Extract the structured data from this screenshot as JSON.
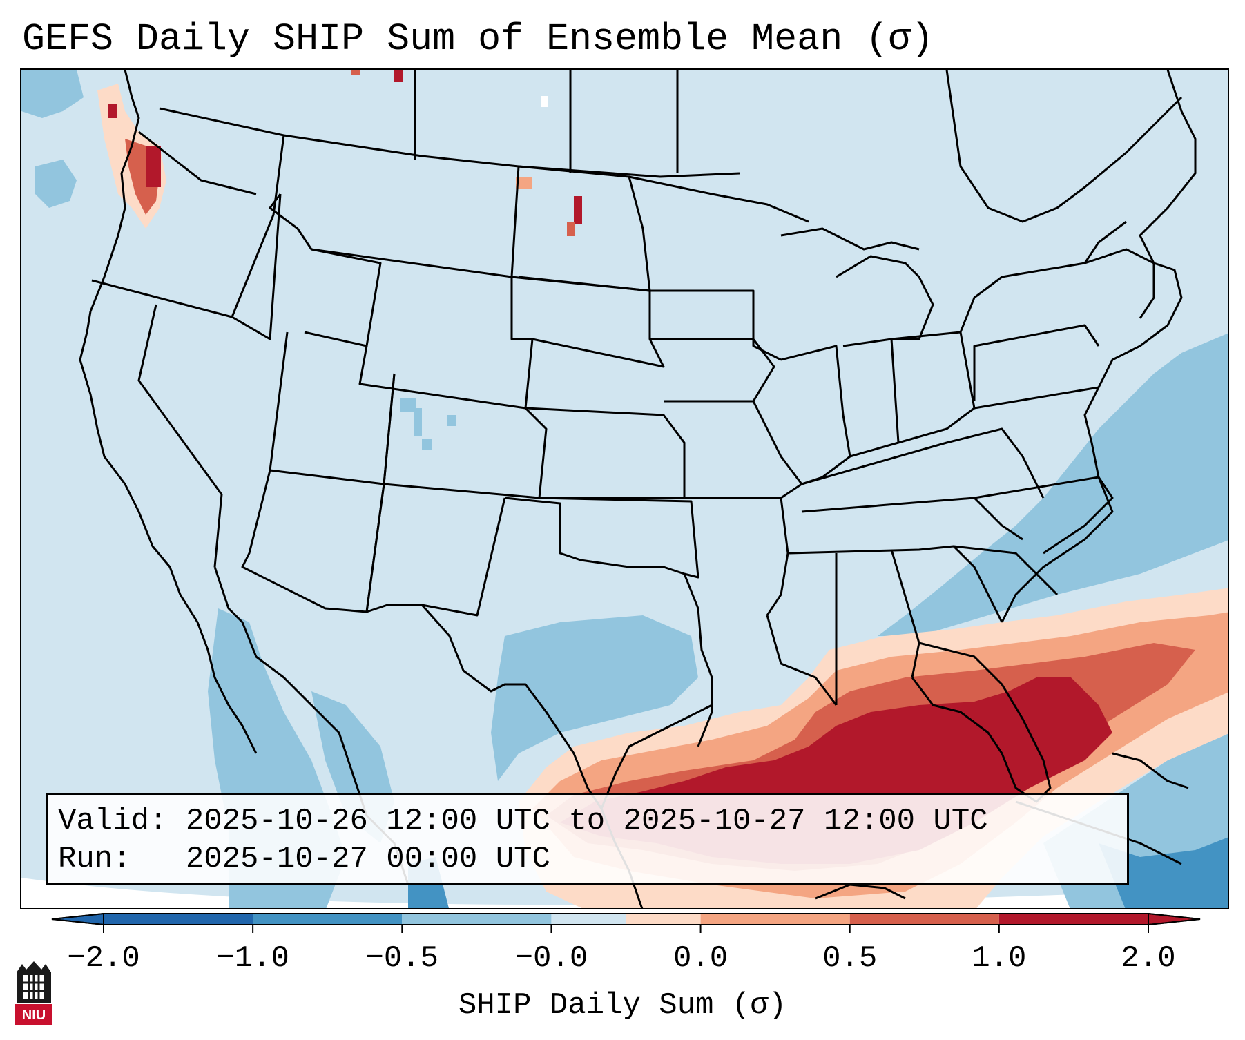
{
  "title": "GEFS Daily SHIP Sum of Ensemble Mean (σ)",
  "info": {
    "valid_label": "Valid:",
    "valid_value": "2025-10-26 12:00 UTC to 2025-10-27 12:00 UTC",
    "run_label": "Run:",
    "run_value": "2025-10-27 00:00 UTC"
  },
  "colorbar": {
    "label": "SHIP Daily Sum (σ)",
    "ticks": [
      "−2.0",
      "−1.0",
      "−0.5",
      "−0.0",
      "0.0",
      "0.5",
      "1.0",
      "2.0"
    ],
    "colors": [
      "#2166ac",
      "#4393c3",
      "#92c5de",
      "#d1e5f0",
      "#fddbc7",
      "#f4a582",
      "#d6604d",
      "#b2182b"
    ],
    "extend": "both"
  },
  "colors": {
    "background_field": "#d1e5f0",
    "ocean_negative": "#92c5de",
    "strong_positive": "#b2182b",
    "outline": "#000000"
  },
  "logo": {
    "text": "NIU"
  }
}
